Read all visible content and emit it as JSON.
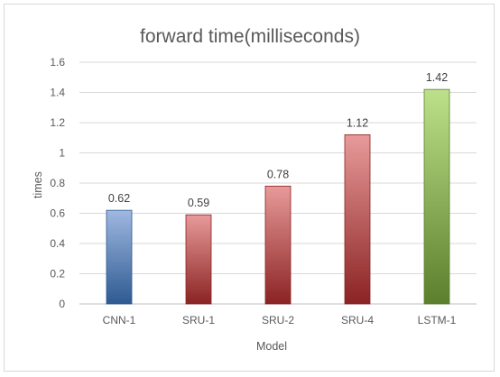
{
  "chart_data": {
    "type": "bar",
    "title": "forward time(milliseconds)",
    "xlabel": "Model",
    "ylabel": "times",
    "categories": [
      "CNN-1",
      "SRU-1",
      "SRU-2",
      "SRU-4",
      "LSTM-1"
    ],
    "values": [
      0.62,
      0.59,
      0.78,
      1.12,
      1.42
    ],
    "data_labels": [
      "0.62",
      "0.59",
      "0.78",
      "1.12",
      "1.42"
    ],
    "ylim": [
      0,
      1.6
    ],
    "yticks": [
      0,
      0.2,
      0.4,
      0.6,
      0.8,
      1,
      1.2,
      1.4,
      1.6
    ],
    "ytick_labels": [
      "0",
      "0.2",
      "0.4",
      "0.6",
      "0.8",
      "1",
      "1.2",
      "1.4",
      "1.6"
    ],
    "grid": "horizontal",
    "legend": "none",
    "bar_colors": [
      {
        "top": "#9fb8e0",
        "bottom": "#2e5a92"
      },
      {
        "top": "#e89a9a",
        "bottom": "#8b2323"
      },
      {
        "top": "#e89a9a",
        "bottom": "#8b2323"
      },
      {
        "top": "#e89a9a",
        "bottom": "#8b2323"
      },
      {
        "top": "#bde08a",
        "bottom": "#5b7f2c"
      }
    ]
  }
}
